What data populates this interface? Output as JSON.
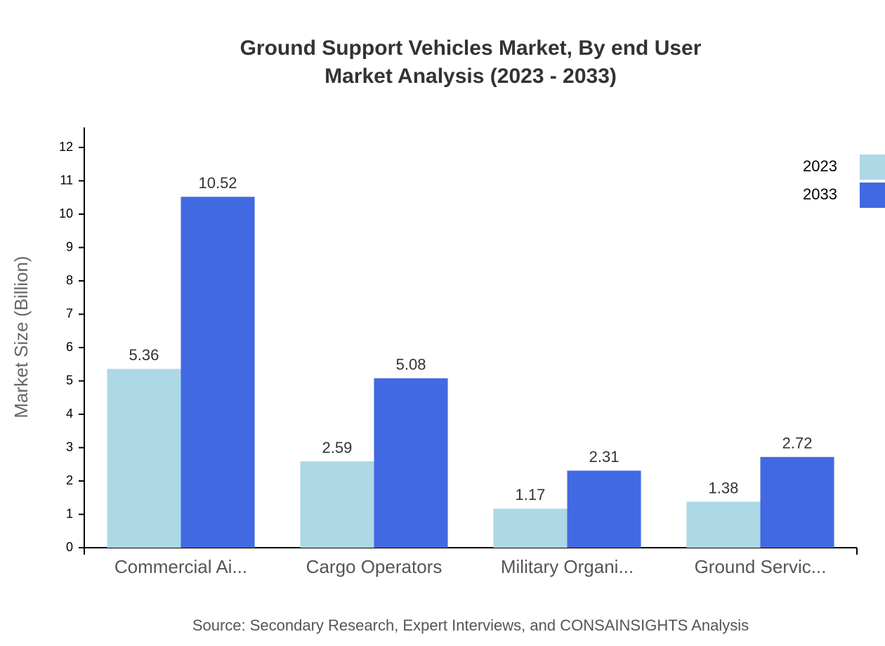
{
  "chart_data": {
    "type": "bar",
    "title": "Ground Support Vehicles Market, By end User",
    "subtitle": "Market Analysis (2023 - 2033)",
    "y_label": "Market Size (Billion)",
    "source": "Source: Secondary Research, Expert Interviews, and CONSAINSIGHTS Analysis",
    "categories": [
      "Commercial Ai...",
      "Cargo Operators",
      "Military Organi...",
      "Ground Servic..."
    ],
    "series": [
      {
        "name": "2023",
        "color": "#add8e6",
        "values": [
          5.36,
          2.59,
          1.17,
          1.38
        ]
      },
      {
        "name": "2033",
        "color": "#4169e1",
        "values": [
          10.52,
          5.08,
          2.31,
          2.72
        ]
      }
    ],
    "ylim": [
      0,
      12.6
    ],
    "yticks": [
      0,
      1,
      2,
      3,
      4,
      5,
      6,
      7,
      8,
      9,
      10,
      11,
      12
    ],
    "legend": "top-right"
  }
}
